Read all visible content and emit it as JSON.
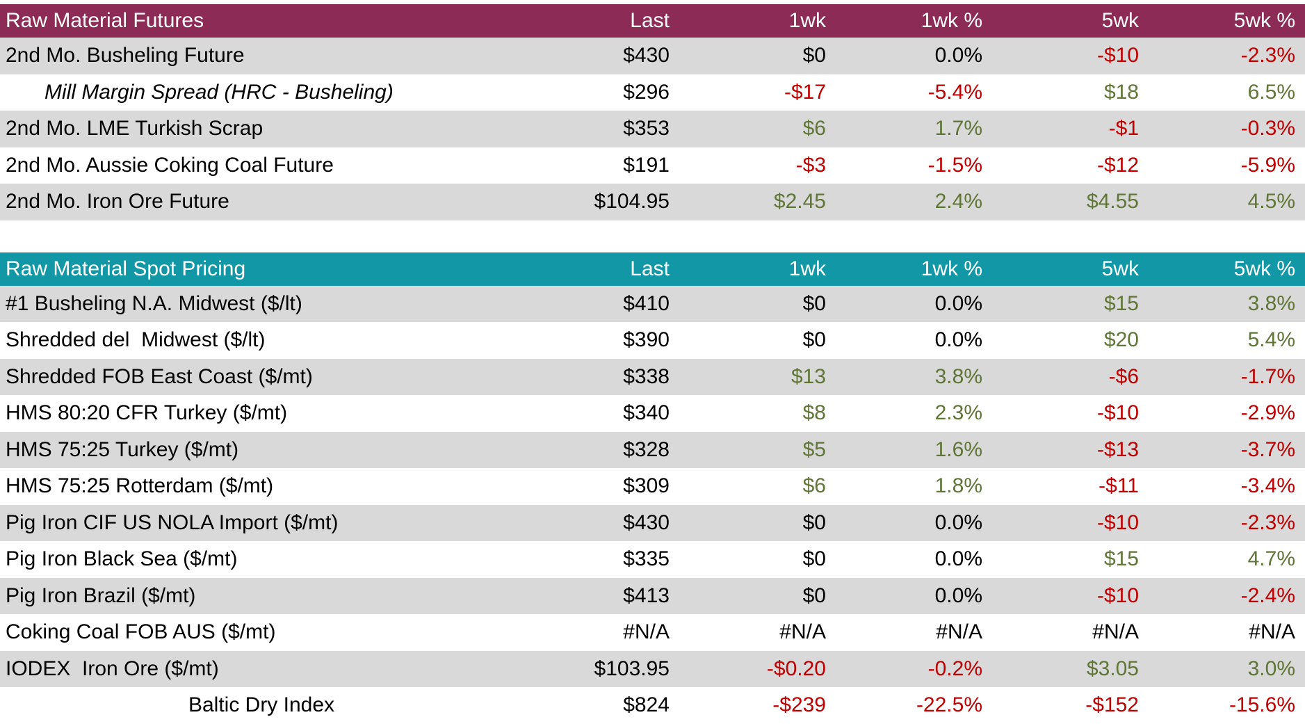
{
  "colors": {
    "futures_header_bg": "#8C2B55",
    "spot_header_bg": "#1297A7",
    "header_text": "#FFFFFF",
    "row_shade": "#D9D9D9",
    "row_plain": "#FFFFFF",
    "positive": "#5F7636",
    "negative": "#C00000",
    "neutral": "#000000"
  },
  "chart_data": [
    {
      "type": "table",
      "title": "Raw Material Futures",
      "header_color": "#8C2B55",
      "columns": [
        "Last",
        "1wk",
        "1wk %",
        "5wk",
        "5wk %"
      ],
      "rows": [
        {
          "label": "2nd Mo. Busheling Future",
          "variant": "default",
          "values": [
            "$430",
            "$0",
            "0.0%",
            "-$10",
            "-2.3%"
          ]
        },
        {
          "label": "Mill Margin Spread (HRC - Busheling)",
          "variant": "spread-italic",
          "values": [
            "$296",
            "-$17",
            "-5.4%",
            "$18",
            "6.5%"
          ]
        },
        {
          "label": "2nd Mo. LME Turkish Scrap",
          "variant": "default",
          "values": [
            "$353",
            "$6",
            "1.7%",
            "-$1",
            "-0.3%"
          ]
        },
        {
          "label": "2nd Mo. Aussie Coking Coal Future",
          "variant": "default",
          "values": [
            "$191",
            "-$3",
            "-1.5%",
            "-$12",
            "-5.9%"
          ]
        },
        {
          "label": "2nd Mo. Iron Ore Future",
          "variant": "default",
          "values": [
            "$104.95",
            "$2.45",
            "2.4%",
            "$4.55",
            "4.5%"
          ]
        }
      ]
    },
    {
      "type": "table",
      "title": "Raw Material Spot Pricing",
      "header_color": "#1297A7",
      "columns": [
        "Last",
        "1wk",
        "1wk %",
        "5wk",
        "5wk %"
      ],
      "rows": [
        {
          "label": "#1 Busheling N.A. Midwest ($/lt)",
          "variant": "default",
          "values": [
            "$410",
            "$0",
            "0.0%",
            "$15",
            "3.8%"
          ]
        },
        {
          "label": "Shredded del  Midwest ($/lt)",
          "variant": "default",
          "values": [
            "$390",
            "$0",
            "0.0%",
            "$20",
            "5.4%"
          ]
        },
        {
          "label": "Shredded FOB East Coast ($/mt)",
          "variant": "default",
          "values": [
            "$338",
            "$13",
            "3.8%",
            "-$6",
            "-1.7%"
          ]
        },
        {
          "label": "HMS 80:20 CFR Turkey ($/mt)",
          "variant": "default",
          "values": [
            "$340",
            "$8",
            "2.3%",
            "-$10",
            "-2.9%"
          ]
        },
        {
          "label": "HMS 75:25 Turkey ($/mt)",
          "variant": "default",
          "values": [
            "$328",
            "$5",
            "1.6%",
            "-$13",
            "-3.7%"
          ]
        },
        {
          "label": "HMS 75:25 Rotterdam ($/mt)",
          "variant": "default",
          "values": [
            "$309",
            "$6",
            "1.8%",
            "-$11",
            "-3.4%"
          ]
        },
        {
          "label": "Pig Iron CIF US NOLA Import ($/mt)",
          "variant": "default",
          "values": [
            "$430",
            "$0",
            "0.0%",
            "-$10",
            "-2.3%"
          ]
        },
        {
          "label": "Pig Iron Black Sea ($/mt)",
          "variant": "default",
          "values": [
            "$335",
            "$0",
            "0.0%",
            "$15",
            "4.7%"
          ]
        },
        {
          "label": "Pig Iron Brazil ($/mt)",
          "variant": "default",
          "values": [
            "$413",
            "$0",
            "0.0%",
            "-$10",
            "-2.4%"
          ]
        },
        {
          "label": "Coking Coal FOB AUS ($/mt)",
          "variant": "default",
          "values": [
            "#N/A",
            "#N/A",
            "#N/A",
            "#N/A",
            "#N/A"
          ]
        },
        {
          "label": "IODEX  Iron Ore ($/mt)",
          "variant": "default",
          "values": [
            "$103.95",
            "-$0.20",
            "-0.2%",
            "$3.05",
            "3.0%"
          ]
        },
        {
          "label": "Baltic Dry Index",
          "variant": "centered",
          "values": [
            "$824",
            "-$239",
            "-22.5%",
            "-$152",
            "-15.6%"
          ]
        }
      ]
    }
  ]
}
